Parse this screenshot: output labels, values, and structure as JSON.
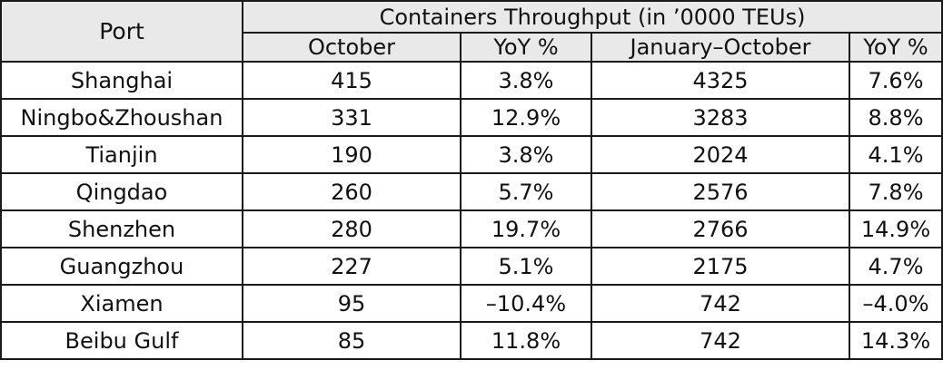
{
  "table": {
    "port_header": "Port",
    "group_header": "Containers Throughput (in ’0000 TEUs)",
    "columns": [
      "October",
      "YoY %",
      "January–October",
      "YoY %"
    ],
    "rows": [
      {
        "port": "Shanghai",
        "october": "415",
        "yoy_october": "3.8%",
        "jan_oct": "4325",
        "yoy_jan_oct": "7.6%"
      },
      {
        "port": "Ningbo&Zhoushan",
        "october": "331",
        "yoy_october": "12.9%",
        "jan_oct": "3283",
        "yoy_jan_oct": "8.8%"
      },
      {
        "port": "Tianjin",
        "october": "190",
        "yoy_october": "3.8%",
        "jan_oct": "2024",
        "yoy_jan_oct": "4.1%"
      },
      {
        "port": "Qingdao",
        "october": "260",
        "yoy_october": "5.7%",
        "jan_oct": "2576",
        "yoy_jan_oct": "7.8%"
      },
      {
        "port": "Shenzhen",
        "october": "280",
        "yoy_october": "19.7%",
        "jan_oct": "2766",
        "yoy_jan_oct": "14.9%"
      },
      {
        "port": "Guangzhou",
        "october": "227",
        "yoy_october": "5.1%",
        "jan_oct": "2175",
        "yoy_jan_oct": "4.7%"
      },
      {
        "port": "Xiamen",
        "october": "95",
        "yoy_october": "–10.4%",
        "jan_oct": "742",
        "yoy_jan_oct": "–4.0%"
      },
      {
        "port": "Beibu Gulf",
        "october": "85",
        "yoy_october": "11.8%",
        "jan_oct": "742",
        "yoy_jan_oct": "14.3%"
      }
    ]
  },
  "colors": {
    "header_background": "#e9e9e9",
    "border": "#1a1a1a",
    "text": "#111111"
  }
}
